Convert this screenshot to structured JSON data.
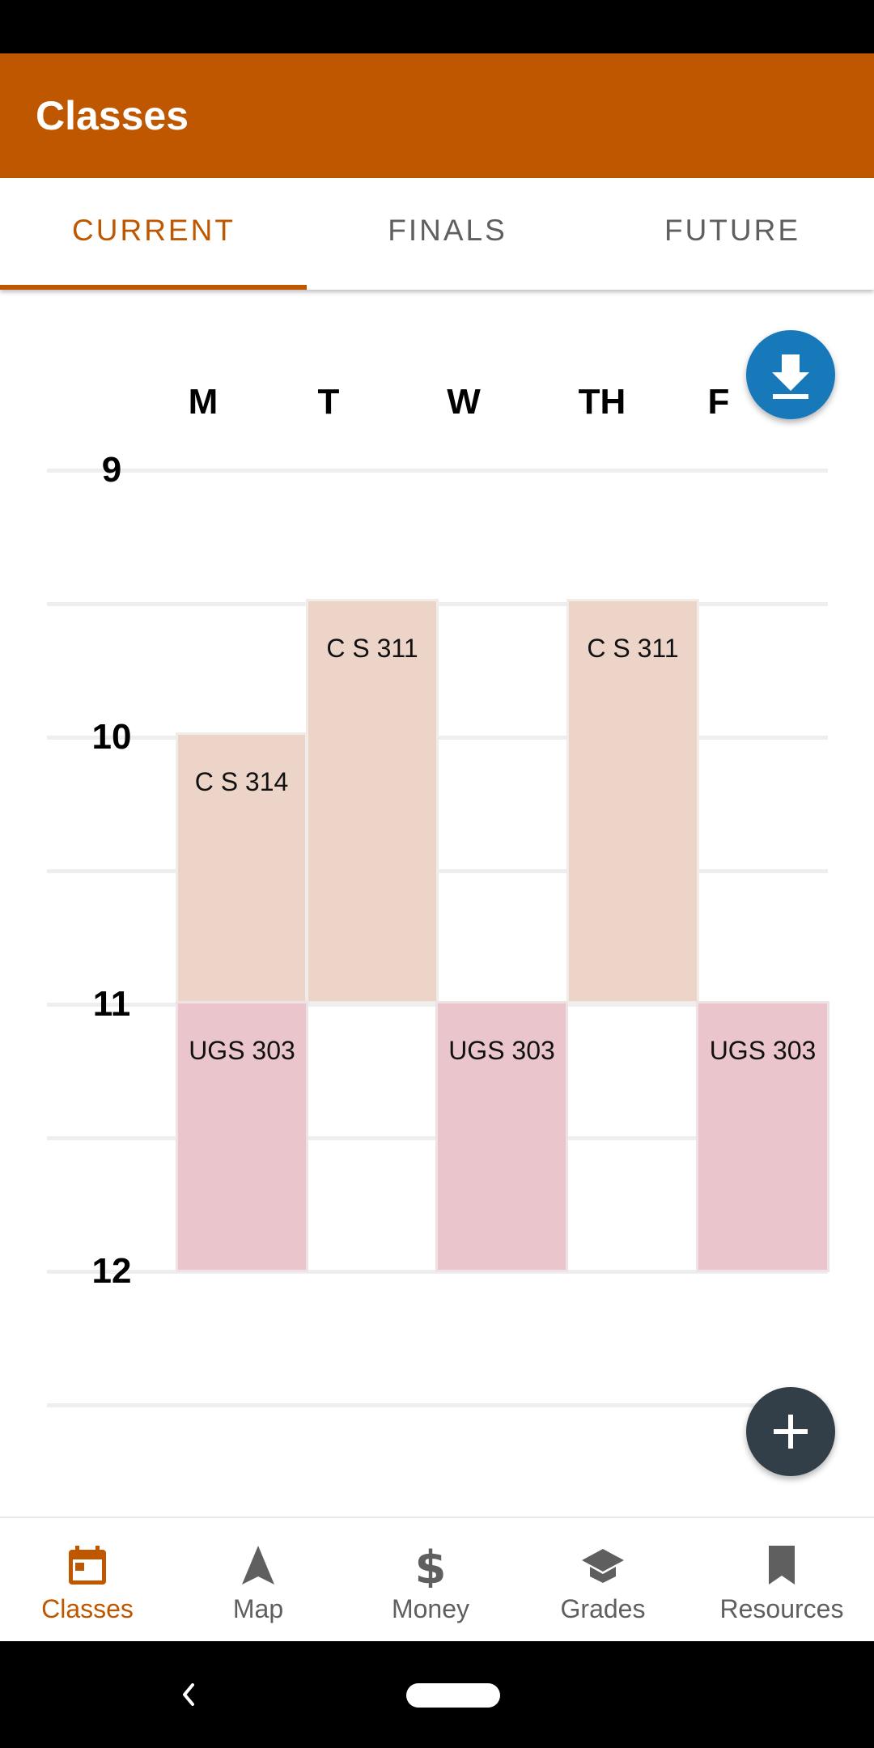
{
  "app": {
    "title": "Classes"
  },
  "tabs": [
    {
      "label": "CURRENT",
      "active": true
    },
    {
      "label": "FINALS",
      "active": false
    },
    {
      "label": "FUTURE",
      "active": false
    }
  ],
  "schedule": {
    "days": [
      "M",
      "T",
      "W",
      "TH",
      "F"
    ],
    "hours": [
      "9",
      "10",
      "11",
      "12"
    ],
    "classes": [
      {
        "name": "C S 311",
        "days": [
          "T",
          "TH"
        ]
      },
      {
        "name": "C S 314",
        "days": [
          "M"
        ]
      },
      {
        "name": "UGS 303",
        "days": [
          "M",
          "W",
          "F"
        ]
      }
    ],
    "blocks": {
      "cs311_t": "C S 311",
      "cs311_th": "C S 311",
      "cs314_m": "C S 314",
      "ugs_m": "UGS 303",
      "ugs_w": "UGS 303",
      "ugs_f": "UGS 303"
    }
  },
  "fabs": {
    "download_icon": "download-icon",
    "add_icon": "plus-icon"
  },
  "bottom_nav": [
    {
      "label": "Classes",
      "icon": "calendar-icon",
      "active": true
    },
    {
      "label": "Map",
      "icon": "navigation-arrow-icon",
      "active": false
    },
    {
      "label": "Money",
      "icon": "dollar-icon",
      "active": false
    },
    {
      "label": "Grades",
      "icon": "graduation-cap-icon",
      "active": false
    },
    {
      "label": "Resources",
      "icon": "bookmark-icon",
      "active": false
    }
  ],
  "colors": {
    "brand": "#bf5700",
    "download_fab": "#1779ba",
    "add_fab": "#333f48",
    "cs_block": "#ecd5c8",
    "ugs_block": "#eac5cc"
  }
}
